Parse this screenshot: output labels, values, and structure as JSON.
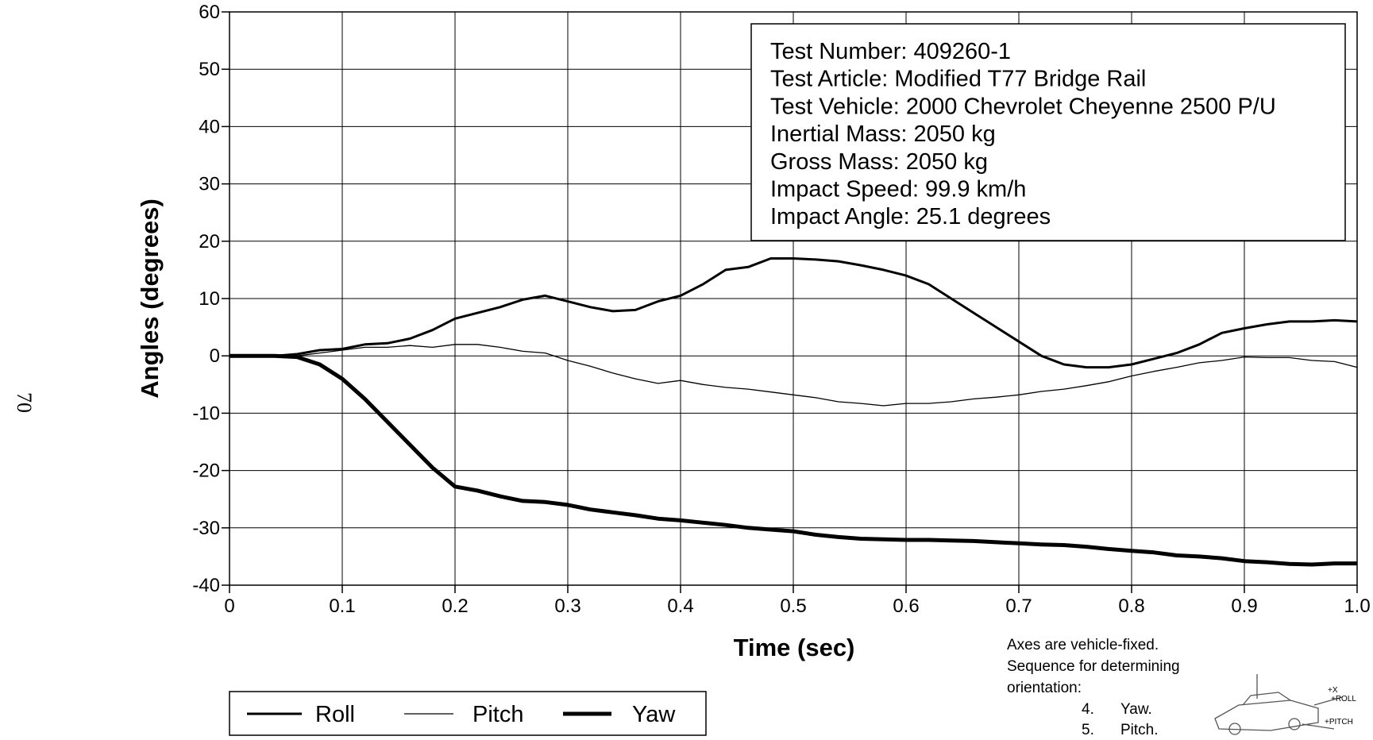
{
  "page_number": "70",
  "chart_data": {
    "type": "line",
    "x_label": "Time (sec)",
    "y_label": "Angles (degrees)",
    "info_box": [
      "Test Number: 409260-1",
      "Test Article: Modified T77 Bridge Rail",
      "Test Vehicle: 2000 Chevrolet Cheyenne 2500 P/U",
      "Inertial Mass: 2050 kg",
      "Gross Mass: 2050 kg",
      "Impact Speed: 99.9 km/h",
      "Impact Angle: 25.1 degrees"
    ],
    "xlim": [
      0,
      1
    ],
    "ylim": [
      -40,
      60
    ],
    "xticks": [
      0,
      0.1,
      0.2,
      0.3,
      0.4,
      0.5,
      0.6,
      0.7,
      0.8,
      0.9,
      {
        "value": 1,
        "label": "1.0"
      }
    ],
    "yticks": [
      -40,
      -30,
      -20,
      -10,
      0,
      10,
      20,
      30,
      40,
      50,
      60
    ],
    "grid": true,
    "x": [
      0,
      0.02,
      0.04,
      0.06,
      0.08,
      0.1,
      0.12,
      0.14,
      0.16,
      0.18,
      0.2,
      0.22,
      0.24,
      0.26,
      0.28,
      0.3,
      0.32,
      0.34,
      0.36,
      0.38,
      0.4,
      0.42,
      0.44,
      0.46,
      0.48,
      0.5,
      0.52,
      0.54,
      0.56,
      0.58,
      0.6,
      0.62,
      0.64,
      0.66,
      0.68,
      0.7,
      0.72,
      0.74,
      0.76,
      0.78,
      0.8,
      0.82,
      0.84,
      0.86,
      0.88,
      0.9,
      0.92,
      0.94,
      0.96,
      0.98,
      1
    ],
    "series": [
      {
        "name": "Roll",
        "color": "#000000",
        "line_width": 3,
        "values": [
          0,
          0,
          0,
          0.3,
          1,
          1.2,
          2,
          2.2,
          3,
          4.5,
          6.5,
          7.5,
          8.5,
          9.8,
          10.5,
          9.5,
          8.5,
          7.8,
          8,
          9.5,
          10.5,
          12.5,
          15,
          15.5,
          17,
          17,
          16.8,
          16.5,
          15.8,
          15,
          14,
          12.5,
          10,
          7.5,
          5,
          2.5,
          0,
          -1.5,
          -2,
          -2,
          -1.5,
          -0.5,
          0.5,
          2,
          4,
          4.8,
          5.5,
          6,
          6,
          6.2,
          6
        ]
      },
      {
        "name": "Pitch",
        "color": "#000000",
        "line_width": 1.3,
        "values": [
          0,
          0,
          0,
          0,
          0.5,
          1,
          1.5,
          1.5,
          1.8,
          1.5,
          2,
          2,
          1.5,
          0.8,
          0.5,
          -0.8,
          -1.8,
          -3,
          -4,
          -4.8,
          -4.3,
          -5,
          -5.5,
          -5.8,
          -6.3,
          -6.8,
          -7.3,
          -8,
          -8.3,
          -8.7,
          -8.3,
          -8.3,
          -8,
          -7.5,
          -7.2,
          -6.8,
          -6.2,
          -5.8,
          -5.2,
          -4.5,
          -3.5,
          -2.7,
          -2,
          -1.2,
          -0.8,
          -0.2,
          -0.3,
          -0.3,
          -0.8,
          -1,
          -2
        ]
      },
      {
        "name": "Yaw",
        "color": "#000000",
        "line_width": 5,
        "values": [
          0,
          0,
          0,
          -0.2,
          -1.5,
          -4,
          -7.5,
          -11.5,
          -15.5,
          -19.5,
          -22.8,
          -23.5,
          -24.5,
          -25.3,
          -25.5,
          -26,
          -26.8,
          -27.3,
          -27.8,
          -28.4,
          -28.7,
          -29.1,
          -29.5,
          -30,
          -30.3,
          -30.6,
          -31.2,
          -31.6,
          -31.9,
          -32,
          -32.1,
          -32.1,
          -32.2,
          -32.3,
          -32.5,
          -32.7,
          -32.9,
          -33,
          -33.3,
          -33.7,
          -34,
          -34.3,
          -34.8,
          -35,
          -35.3,
          -35.8,
          -36,
          -36.3,
          -36.4,
          -36.2,
          -36.2
        ]
      }
    ]
  },
  "note": {
    "lines": [
      "Axes are vehicle-fixed.",
      "Sequence for determining",
      "orientation:"
    ],
    "items": [
      [
        "4.",
        "Yaw."
      ],
      [
        "5.",
        "Pitch."
      ]
    ],
    "sketch_labels": [
      "+X",
      "+ROLL",
      "+PITCH"
    ]
  }
}
